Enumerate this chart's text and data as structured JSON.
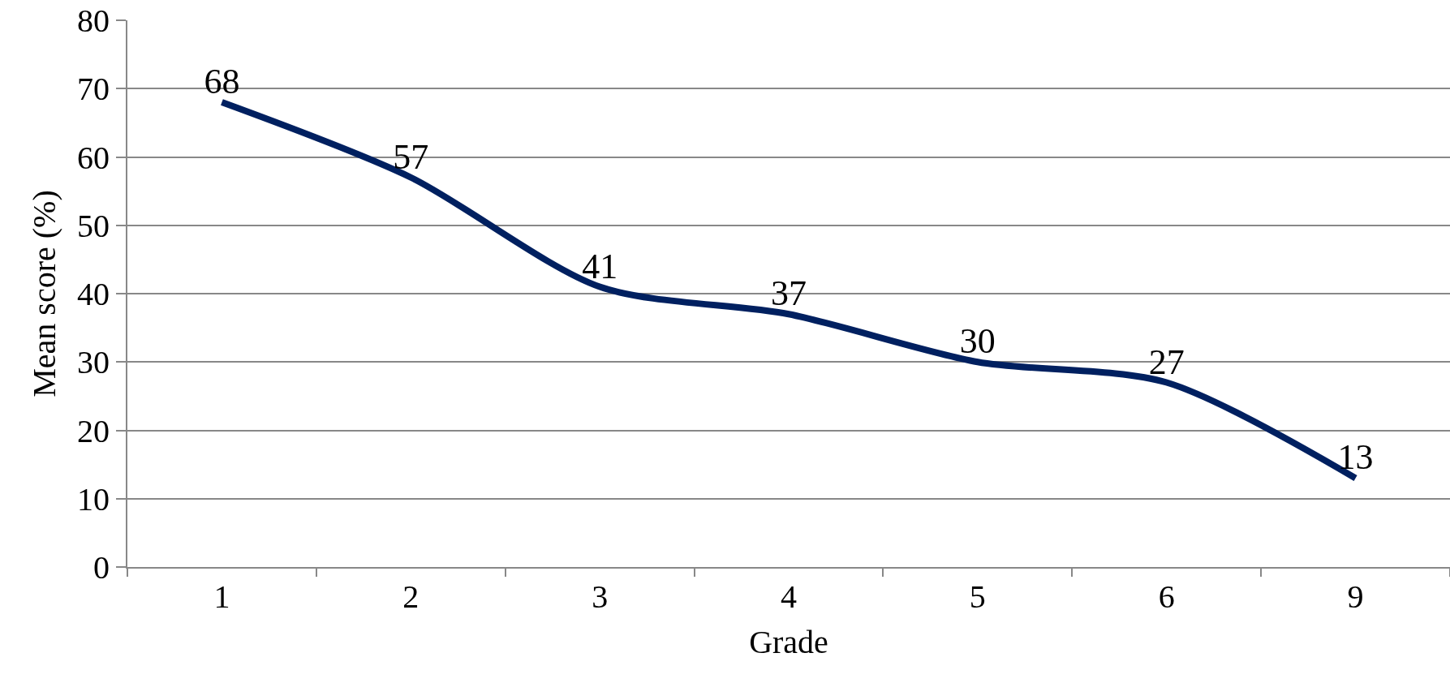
{
  "chart_data": {
    "type": "line",
    "xlabel": "Grade",
    "ylabel": "Mean score (%)",
    "categories": [
      "1",
      "2",
      "3",
      "4",
      "5",
      "6",
      "9"
    ],
    "series": [
      {
        "color": "#002060",
        "values": [
          68,
          57,
          41,
          37,
          30,
          27,
          13
        ]
      }
    ],
    "ylim": [
      0,
      80
    ],
    "yticks": [
      0,
      10,
      20,
      30,
      40,
      50,
      60,
      70,
      80
    ],
    "grid": "y",
    "data_labels": true,
    "line_style": "solid"
  }
}
